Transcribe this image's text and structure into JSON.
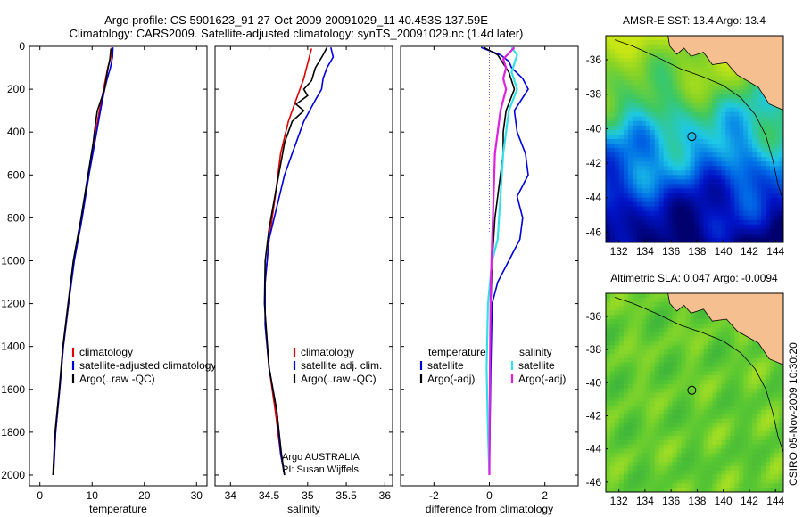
{
  "title_line1": "Argo profile: CS 5901623_91 27-Oct-2009 20091029_11 40.453S 137.59E",
  "title_line2": "Climatology: CARS2009. Satellite-adjusted climatology: synTS_20091029.nc (1.4d later)",
  "side_label": "CSIRO 05-Nov-2009 10:30:20",
  "credit_line1": "Argo AUSTRALIA",
  "credit_line2": "PI: Susan Wijffels",
  "colors": {
    "climatology": "#dd0000",
    "satellite": "#0000dd",
    "argo": "#000000",
    "satellite_salinity": "#33e0e8",
    "argo_salinity": "#e020e0",
    "land": "#f5bf90"
  },
  "chart_data": [
    {
      "id": "temperature",
      "type": "line",
      "xlabel": "temperature",
      "ylabel": "",
      "xlim": [
        -2,
        32
      ],
      "ylim": [
        2050,
        0
      ],
      "xticks": [
        0,
        10,
        20,
        30
      ],
      "yticks": [
        0,
        200,
        400,
        600,
        800,
        1000,
        1200,
        1400,
        1600,
        1800,
        2000
      ],
      "legend": [
        "climatology",
        "satellite-adjusted climatology",
        "Argo(..raw -QC)"
      ],
      "legend_position": "lower-right",
      "series": [
        {
          "name": "climatology",
          "color": "#dd0000",
          "points": [
            [
              13.8,
              5
            ],
            [
              13.6,
              50
            ],
            [
              13.0,
              100
            ],
            [
              12.2,
              200
            ],
            [
              11.4,
              300
            ],
            [
              10.3,
              450
            ],
            [
              9.3,
              600
            ],
            [
              8.0,
              800
            ],
            [
              6.5,
              1000
            ],
            [
              5.5,
              1200
            ],
            [
              4.5,
              1400
            ],
            [
              3.8,
              1600
            ],
            [
              3.0,
              1800
            ],
            [
              2.6,
              2000
            ]
          ]
        },
        {
          "name": "satellite-adjusted climatology",
          "color": "#0000dd",
          "points": [
            [
              14.0,
              5
            ],
            [
              13.9,
              50
            ],
            [
              13.5,
              100
            ],
            [
              12.9,
              150
            ],
            [
              12.4,
              200
            ],
            [
              11.6,
              300
            ],
            [
              10.5,
              450
            ],
            [
              9.4,
              600
            ],
            [
              8.1,
              800
            ],
            [
              6.6,
              1000
            ],
            [
              5.5,
              1200
            ],
            [
              4.5,
              1400
            ],
            [
              3.8,
              1600
            ],
            [
              3.0,
              1800
            ],
            [
              2.6,
              2000
            ]
          ]
        },
        {
          "name": "Argo(..raw -QC)",
          "color": "#000000",
          "points": [
            [
              13.6,
              10
            ],
            [
              13.4,
              60
            ],
            [
              12.9,
              120
            ],
            [
              12.4,
              200
            ],
            [
              11.0,
              300
            ],
            [
              10.7,
              350
            ],
            [
              10.2,
              450
            ],
            [
              9.2,
              600
            ],
            [
              7.9,
              800
            ],
            [
              6.4,
              1000
            ],
            [
              5.4,
              1200
            ],
            [
              4.4,
              1400
            ],
            [
              3.7,
              1600
            ],
            [
              2.9,
              1800
            ],
            [
              2.5,
              2000
            ]
          ]
        }
      ]
    },
    {
      "id": "salinity",
      "type": "line",
      "xlabel": "salinity",
      "ylabel": "",
      "xlim": [
        33.8,
        36.1
      ],
      "ylim": [
        2050,
        0
      ],
      "xticks": [
        34,
        34.5,
        35,
        35.5,
        36
      ],
      "legend": [
        "climatology",
        "satellite adj. clim.",
        "Argo(..raw -QC)"
      ],
      "legend_position": "lower-right",
      "series": [
        {
          "name": "climatology",
          "color": "#dd0000",
          "points": [
            [
              35.05,
              10
            ],
            [
              35.0,
              80
            ],
            [
              34.95,
              150
            ],
            [
              34.85,
              250
            ],
            [
              34.75,
              350
            ],
            [
              34.65,
              500
            ],
            [
              34.58,
              700
            ],
            [
              34.5,
              900
            ],
            [
              34.45,
              1100
            ],
            [
              34.45,
              1300
            ],
            [
              34.5,
              1500
            ],
            [
              34.58,
              1700
            ],
            [
              34.65,
              1900
            ],
            [
              34.7,
              2000
            ]
          ]
        },
        {
          "name": "satellite adj. clim.",
          "color": "#0000dd",
          "points": [
            [
              35.3,
              5
            ],
            [
              35.33,
              50
            ],
            [
              35.25,
              100
            ],
            [
              35.2,
              150
            ],
            [
              35.18,
              200
            ],
            [
              35.1,
              250
            ],
            [
              34.95,
              350
            ],
            [
              34.8,
              500
            ],
            [
              34.7,
              600
            ],
            [
              34.6,
              750
            ],
            [
              34.5,
              900
            ],
            [
              34.45,
              1100
            ],
            [
              34.45,
              1300
            ],
            [
              34.5,
              1500
            ],
            [
              34.6,
              1700
            ],
            [
              34.65,
              1900
            ],
            [
              34.7,
              2000
            ]
          ]
        },
        {
          "name": "Argo(..raw -QC)",
          "color": "#000000",
          "points": [
            [
              35.25,
              5
            ],
            [
              35.2,
              40
            ],
            [
              35.1,
              100
            ],
            [
              35.05,
              160
            ],
            [
              34.95,
              200
            ],
            [
              35.0,
              230
            ],
            [
              34.85,
              270
            ],
            [
              34.95,
              300
            ],
            [
              34.8,
              350
            ],
            [
              34.7,
              450
            ],
            [
              34.6,
              650
            ],
            [
              34.5,
              850
            ],
            [
              34.45,
              1000
            ],
            [
              34.44,
              1200
            ],
            [
              34.5,
              1500
            ],
            [
              34.6,
              1700
            ],
            [
              34.66,
              1900
            ],
            [
              34.7,
              2000
            ]
          ]
        }
      ]
    },
    {
      "id": "difference",
      "type": "line",
      "xlabel": "difference from climatology",
      "ylabel": "",
      "xlim": [
        -3.2,
        3.2
      ],
      "ylim": [
        2050,
        0
      ],
      "xticks": [
        -2,
        0,
        2
      ],
      "legend": [
        "temperature",
        "satellite",
        "Argo(-adj)",
        "salinity",
        "satellite",
        "Argo(-adj)"
      ],
      "legend_position": "lower-right",
      "series": [
        {
          "name": "satellite",
          "group": "temperature",
          "color": "#0000dd",
          "points": [
            [
              -0.3,
              5
            ],
            [
              0.4,
              40
            ],
            [
              0.7,
              70
            ],
            [
              0.8,
              100
            ],
            [
              1.2,
              150
            ],
            [
              1.4,
              200
            ],
            [
              0.9,
              300
            ],
            [
              1.0,
              400
            ],
            [
              1.3,
              500
            ],
            [
              1.4,
              600
            ],
            [
              1.0,
              700
            ],
            [
              1.2,
              800
            ],
            [
              1.1,
              900
            ],
            [
              0.7,
              1000
            ],
            [
              0.3,
              1100
            ],
            [
              0.1,
              1200
            ],
            [
              0.05,
              1500
            ],
            [
              0.02,
              1800
            ],
            [
              0.0,
              2000
            ]
          ]
        },
        {
          "name": "Argo(-adj)",
          "group": "temperature",
          "color": "#000000",
          "points": [
            [
              -0.2,
              5
            ],
            [
              0.3,
              40
            ],
            [
              0.5,
              80
            ],
            [
              0.7,
              120
            ],
            [
              0.9,
              200
            ],
            [
              0.6,
              300
            ],
            [
              0.5,
              400
            ],
            [
              0.5,
              500
            ],
            [
              0.4,
              600
            ],
            [
              0.3,
              700
            ],
            [
              0.2,
              800
            ],
            [
              0.1,
              1000
            ],
            [
              0.05,
              1200
            ],
            [
              0.02,
              1600
            ],
            [
              0.0,
              2000
            ]
          ]
        },
        {
          "name": "satellite",
          "group": "salinity",
          "color": "#33e0e8",
          "points": [
            [
              0.8,
              5
            ],
            [
              1.0,
              40
            ],
            [
              0.9,
              80
            ],
            [
              0.8,
              120
            ],
            [
              1.0,
              200
            ],
            [
              0.7,
              300
            ],
            [
              0.6,
              400
            ],
            [
              0.5,
              500
            ],
            [
              0.4,
              700
            ],
            [
              0.3,
              900
            ],
            [
              0.1,
              1000
            ],
            [
              -0.05,
              1200
            ],
            [
              -0.1,
              1500
            ],
            [
              -0.05,
              1800
            ],
            [
              0.0,
              2000
            ]
          ]
        },
        {
          "name": "Argo(-adj)",
          "group": "salinity",
          "color": "#e020e0",
          "points": [
            [
              0.9,
              5
            ],
            [
              0.5,
              60
            ],
            [
              0.6,
              100
            ],
            [
              0.5,
              150
            ],
            [
              0.6,
              200
            ],
            [
              0.4,
              300
            ],
            [
              0.3,
              400
            ],
            [
              0.2,
              500
            ],
            [
              0.15,
              700
            ],
            [
              0.1,
              900
            ],
            [
              0.05,
              1100
            ],
            [
              0.02,
              1500
            ],
            [
              0.0,
              2000
            ]
          ]
        }
      ]
    }
  ],
  "maps": [
    {
      "id": "sst",
      "title": "AMSR-E SST: 13.4 Argo: 13.4",
      "xticks": [
        "132",
        "134",
        "136",
        "138",
        "140",
        "142",
        "144"
      ],
      "yticks": [
        "-36",
        "-38",
        "-40",
        "-42",
        "-44",
        "-46"
      ],
      "colormap": "sst"
    },
    {
      "id": "sla",
      "title": "Altimetric SLA: 0.047 Argo: -0.0094",
      "xticks": [
        "132",
        "134",
        "136",
        "138",
        "140",
        "142",
        "144"
      ],
      "yticks": [
        "-36",
        "-38",
        "-40",
        "-42",
        "-44",
        "-46"
      ],
      "colormap": "sla"
    }
  ]
}
